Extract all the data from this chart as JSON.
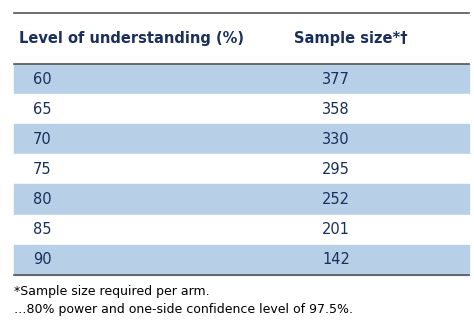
{
  "col1_header": "Level of understanding (%)",
  "col2_header": "Sample size*†",
  "rows": [
    [
      "60",
      "377"
    ],
    [
      "65",
      "358"
    ],
    [
      "70",
      "330"
    ],
    [
      "75",
      "295"
    ],
    [
      "80",
      "252"
    ],
    [
      "85",
      "201"
    ],
    [
      "90",
      "142"
    ]
  ],
  "footnote1": "*Sample size required per arm.",
  "footnote2": "…80% power and one-side confidence level of 97.5%.",
  "highlight_color": "#b8cfe8",
  "white_color": "#ffffff",
  "header_text_color": "#1a2f5a",
  "cell_text_color": "#1a2f5a",
  "footnote_color": "#000000",
  "header_fontsize": 10.5,
  "cell_fontsize": 10.5,
  "footnote_fontsize": 9.0,
  "line_color": "#555555"
}
